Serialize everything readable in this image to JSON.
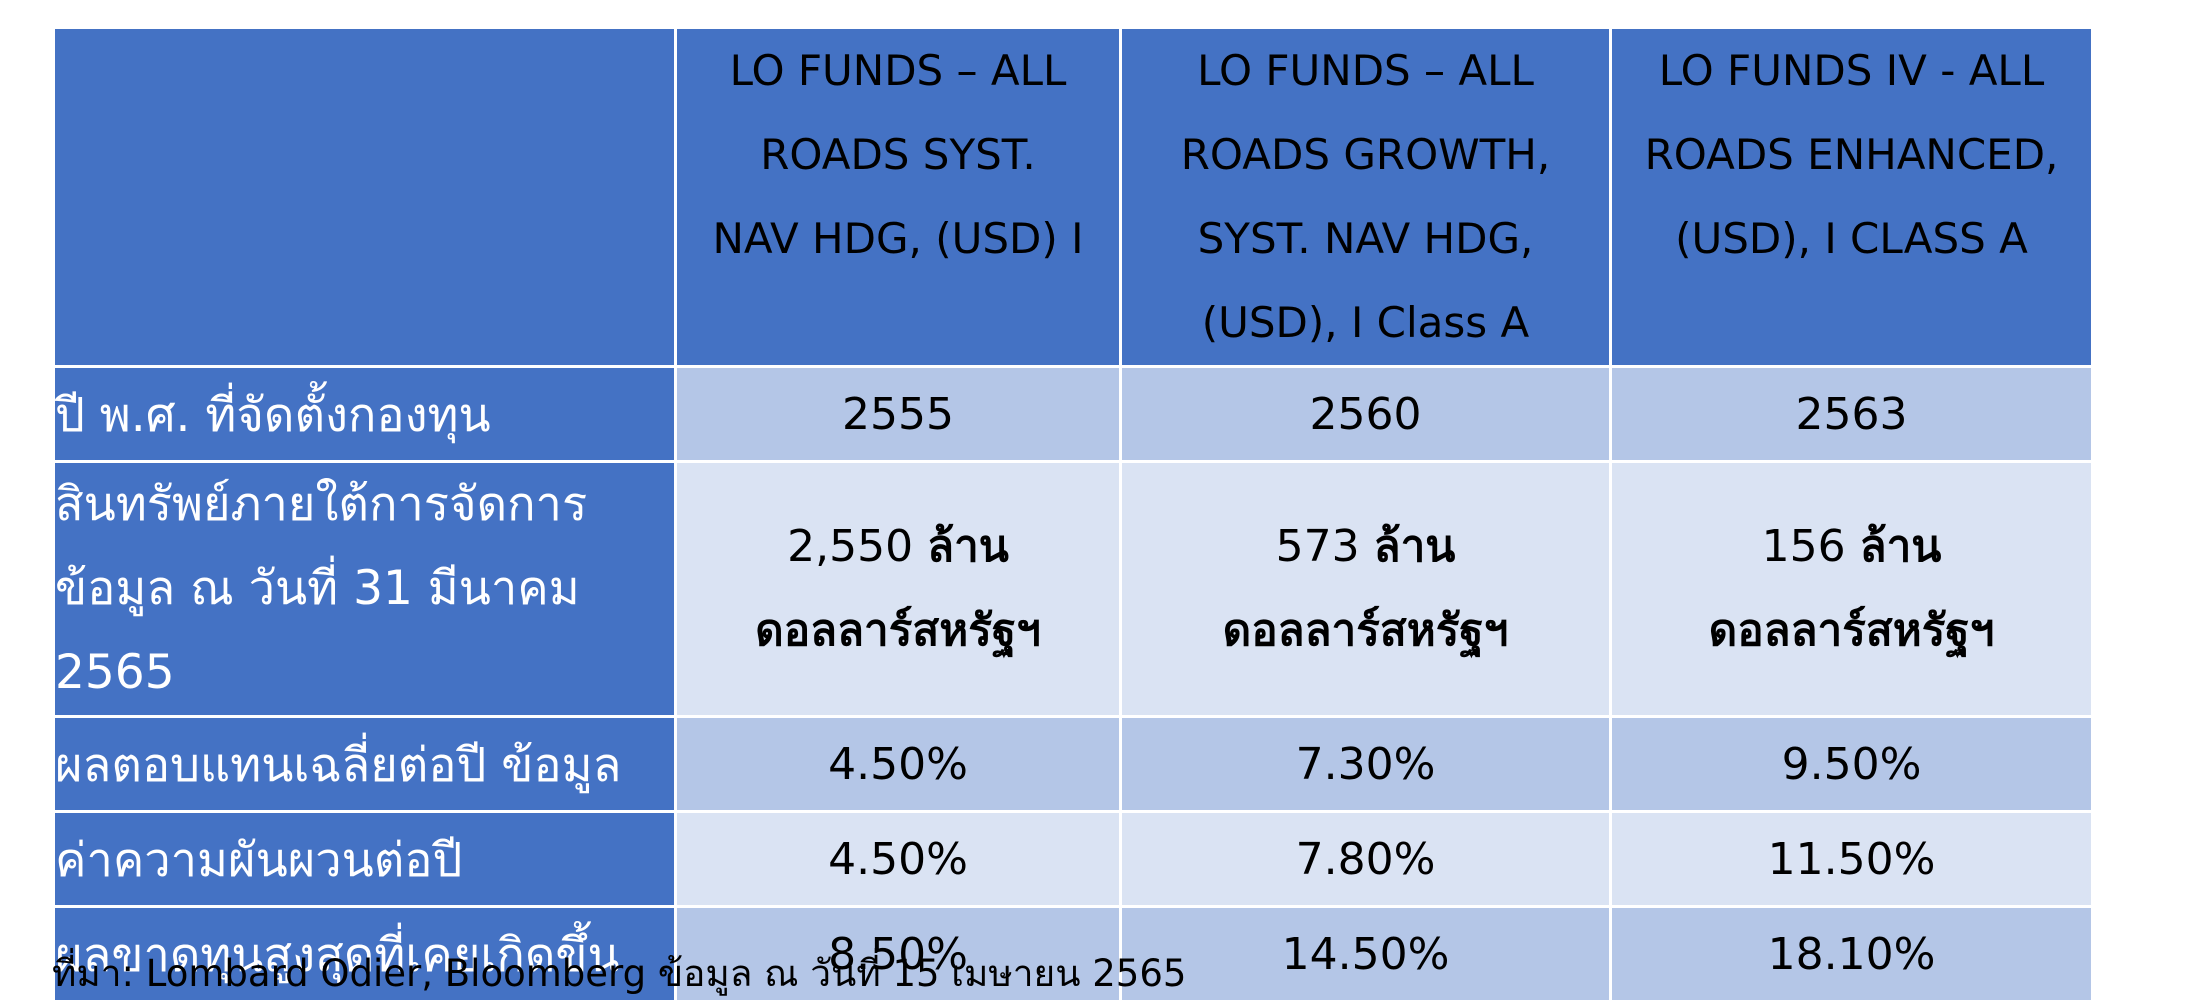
{
  "table": {
    "headers": [
      "",
      "LO FUNDS – ALL ROADS SYST. NAV HDG, (USD) I",
      "LO FUNDS – ALL ROADS GROWTH, SYST. NAV HDG, (USD), I Class A",
      "LO FUNDS IV - ALL ROADS ENHANCED, (USD), I CLASS A"
    ],
    "header_lines": [
      [
        "LO FUNDS – ALL",
        "ROADS SYST.",
        "NAV HDG, (USD) I"
      ],
      [
        "LO FUNDS – ALL",
        "ROADS GROWTH,",
        "SYST. NAV HDG,",
        "(USD), I Class A"
      ],
      [
        "LO FUNDS IV - ALL",
        "ROADS ENHANCED,",
        "(USD), I CLASS A"
      ]
    ],
    "rows": [
      {
        "label": "ปี พ.ศ. ที่จัดตั้งกองทุน",
        "values": [
          "2555",
          "2560",
          "2563"
        ]
      },
      {
        "label_lines": [
          "สินทรัพย์ภายใต้การจัดการ",
          "ข้อมูล ณ วันที่ 31 มีนาคม 2565"
        ],
        "values": [
          {
            "amount": "2,550",
            "unit_word": "ล้าน",
            "currency": "ดอลลาร์สหรัฐฯ"
          },
          {
            "amount": "573",
            "unit_word": "ล้าน",
            "currency": "ดอลลาร์สหรัฐฯ"
          },
          {
            "amount": "156",
            "unit_word": "ล้าน",
            "currency": "ดอลลาร์สหรัฐฯ"
          }
        ]
      },
      {
        "label": "ผลตอบแทนเฉลี่ยต่อปี ข้อมูล",
        "values": [
          "4.50%",
          "7.30%",
          "9.50%"
        ]
      },
      {
        "label": "ค่าความผันผวนต่อปี",
        "values": [
          "4.50%",
          "7.80%",
          "11.50%"
        ]
      },
      {
        "label": "ผลขาดทุนสูงสุดที่เคยเกิดขึ้น",
        "values": [
          "8.50%",
          "14.50%",
          "18.10%"
        ]
      }
    ]
  },
  "footnote": "ที่มา: Lombard Odier, Bloomberg ข้อมูล ณ วันที่ 15 เมษายน 2565",
  "colors": {
    "header_bg": "#4472c4",
    "row_dark": "#b4c6e7",
    "row_light": "#dae3f3"
  }
}
